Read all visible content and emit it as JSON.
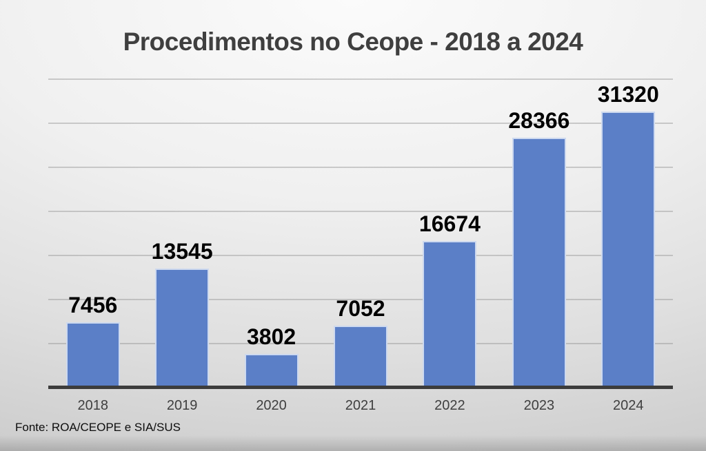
{
  "title": "Procedimentos no Ceope - 2018 a 2024",
  "source_note": "Fonte: ROA/CEOPE e SIA/SUS",
  "colors": {
    "title_color": "#3F3F3F",
    "value_label_color": "#000000",
    "tick_label_color": "#3F3F3F",
    "axis_line_color": "#3C3C3C",
    "gridline_color": "rgba(140,140,140,0.40)",
    "background_top": "#FBFBFB",
    "background_edge": "#C8C8C8"
  },
  "chart_data": {
    "type": "bar",
    "title": "Procedimentos no Ceope - 2018 a 2024",
    "categories": [
      "2018",
      "2019",
      "2020",
      "2021",
      "2022",
      "2023",
      "2024"
    ],
    "values": [
      7456,
      13545,
      3802,
      7052,
      16674,
      28366,
      31320
    ],
    "xlabel": "",
    "ylabel": "",
    "ylim": [
      0,
      35000
    ],
    "gridline_step": 5000,
    "grid": true,
    "legend": false,
    "data_labels": true,
    "bar_color": "#5B7FC7",
    "bar_border_color": "#CDD9EF",
    "annotation": "Fonte: ROA/CEOPE e SIA/SUS"
  }
}
